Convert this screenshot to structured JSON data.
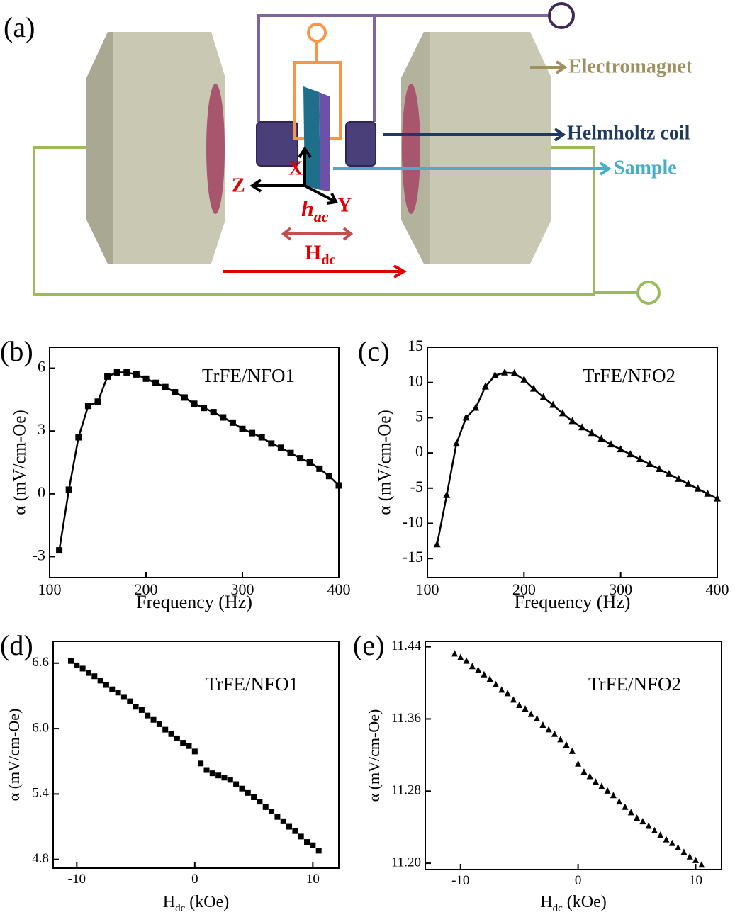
{
  "diagram": {
    "panel_label": "(a)",
    "electromagnet": "Electromagnet",
    "helmholtz": "Helmholtz coil",
    "sample": "Sample",
    "axis_x": "X",
    "axis_y": "Y",
    "axis_z": "Z",
    "hac_main": "h",
    "hac_sub": "ac",
    "hdc_main": "H",
    "hdc_sub": "dc"
  },
  "chart_data": [
    {
      "type": "line",
      "panel_label": "(b)",
      "annotation": "TrFE/NFO1",
      "xlabel": "Frequency (Hz)",
      "ylabel": "α (mV/cm-Oe)",
      "marker": "square",
      "color": "#000000",
      "x": [
        110,
        120,
        130,
        140,
        150,
        160,
        170,
        180,
        190,
        200,
        210,
        220,
        230,
        240,
        250,
        260,
        270,
        280,
        290,
        300,
        310,
        320,
        330,
        340,
        350,
        360,
        370,
        380,
        390,
        400
      ],
      "values": [
        -2.7,
        0.2,
        2.7,
        4.2,
        4.4,
        5.6,
        5.8,
        5.8,
        5.7,
        5.5,
        5.3,
        5.1,
        4.85,
        4.6,
        4.3,
        4.1,
        3.9,
        3.65,
        3.4,
        3.1,
        2.9,
        2.7,
        2.4,
        2.2,
        1.95,
        1.7,
        1.5,
        1.2,
        0.85,
        0.4
      ],
      "xlim": [
        100,
        400
      ],
      "xticks": [
        100,
        200,
        300,
        400
      ],
      "ylim": [
        -4,
        7
      ],
      "yticks": [
        -3,
        0,
        3,
        6
      ]
    },
    {
      "type": "line",
      "panel_label": "(c)",
      "annotation": "TrFE/NFO2",
      "xlabel": "Frequency (Hz)",
      "ylabel": "α (mV/cm-Oe)",
      "marker": "triangle",
      "color": "#000000",
      "x": [
        110,
        120,
        130,
        140,
        150,
        160,
        170,
        180,
        190,
        200,
        210,
        220,
        230,
        240,
        250,
        260,
        270,
        280,
        290,
        300,
        310,
        320,
        330,
        340,
        350,
        360,
        370,
        380,
        390,
        400
      ],
      "values": [
        -13,
        -6,
        1.3,
        5,
        6.4,
        9.4,
        11,
        11.4,
        11.3,
        10.4,
        9.1,
        7.9,
        6.8,
        5.6,
        4.5,
        3.6,
        2.8,
        2,
        1.2,
        0.5,
        -0.2,
        -0.9,
        -1.6,
        -2.3,
        -3,
        -3.7,
        -4.4,
        -5.1,
        -5.8,
        -6.5
      ],
      "xlim": [
        100,
        400
      ],
      "xticks": [
        100,
        200,
        300,
        400
      ],
      "ylim": [
        -17.7,
        15
      ],
      "yticks": [
        -15,
        -10,
        -5,
        0,
        5,
        10,
        15
      ]
    },
    {
      "type": "scatter",
      "panel_label": "(d)",
      "annotation": "TrFE/NFO1",
      "xlabel_main": "H",
      "xlabel_sub": "dc",
      "xlabel_rest": "(kOe)",
      "ylabel": "α (mV/cm-Oe)",
      "marker": "square",
      "color": "#000000",
      "x": [
        -10.5,
        -10,
        -9.5,
        -9,
        -8.5,
        -8,
        -7.5,
        -7,
        -6.5,
        -6,
        -5.5,
        -5,
        -4.5,
        -4,
        -3.5,
        -3,
        -2.5,
        -2,
        -1.5,
        -1,
        -0.5,
        0,
        0.5,
        1,
        1.5,
        2,
        2.5,
        3,
        3.5,
        4,
        4.5,
        5,
        5.5,
        6,
        6.5,
        7,
        7.5,
        8,
        8.5,
        9,
        9.5,
        10,
        10.5
      ],
      "values": [
        6.62,
        6.58,
        6.55,
        6.51,
        6.48,
        6.44,
        6.4,
        6.36,
        6.33,
        6.29,
        6.25,
        6.2,
        6.17,
        6.12,
        6.08,
        6.04,
        5.99,
        5.95,
        5.91,
        5.87,
        5.84,
        5.79,
        5.68,
        5.62,
        5.59,
        5.57,
        5.55,
        5.53,
        5.49,
        5.45,
        5.41,
        5.37,
        5.33,
        5.28,
        5.24,
        5.19,
        5.15,
        5.1,
        5.06,
        5.01,
        4.96,
        4.93,
        4.88
      ],
      "xlim": [
        -12,
        12.2
      ],
      "xticks": [
        -10,
        0,
        10
      ],
      "ylim": [
        4.72,
        6.8
      ],
      "yticks": [
        4.8,
        5.4,
        {
          "value": 6,
          "label": "6.0"
        },
        6.6
      ]
    },
    {
      "type": "scatter",
      "panel_label": "(e)",
      "annotation": "TrFE/NFO2",
      "xlabel_main": "H",
      "xlabel_sub": "dc",
      "xlabel_rest": "(kOe)",
      "ylabel": "α (mV/cm-Oe)",
      "marker": "triangle",
      "color": "#000000",
      "x": [
        -10.5,
        -10,
        -9.5,
        -9,
        -8.5,
        -8,
        -7.5,
        -7,
        -6.5,
        -6,
        -5.5,
        -5,
        -4.5,
        -4,
        -3.5,
        -3,
        -2.5,
        -2,
        -1.5,
        -1,
        -0.5,
        0,
        0.5,
        1,
        1.5,
        2,
        2.5,
        3,
        3.5,
        4,
        4.5,
        5,
        5.5,
        6,
        6.5,
        7,
        7.5,
        8,
        8.5,
        9,
        9.5,
        10,
        10.5
      ],
      "values": [
        11.432,
        11.428,
        11.424,
        11.418,
        11.414,
        11.409,
        11.404,
        11.398,
        11.392,
        11.388,
        11.381,
        11.375,
        11.371,
        11.365,
        11.36,
        11.353,
        11.348,
        11.343,
        11.337,
        11.331,
        11.324,
        11.31,
        11.301,
        11.296,
        11.29,
        11.285,
        11.28,
        11.275,
        11.268,
        11.262,
        11.256,
        11.25,
        11.246,
        11.241,
        11.236,
        11.231,
        11.226,
        11.222,
        11.217,
        11.212,
        11.207,
        11.203,
        11.198
      ],
      "xlim": [
        -13,
        12.2
      ],
      "xticks": [
        -10,
        0,
        10
      ],
      "ylim": [
        11.193,
        11.446
      ],
      "yticks": [
        {
          "value": 11.2,
          "label": "11.20"
        },
        11.28,
        11.36,
        11.44
      ]
    }
  ]
}
